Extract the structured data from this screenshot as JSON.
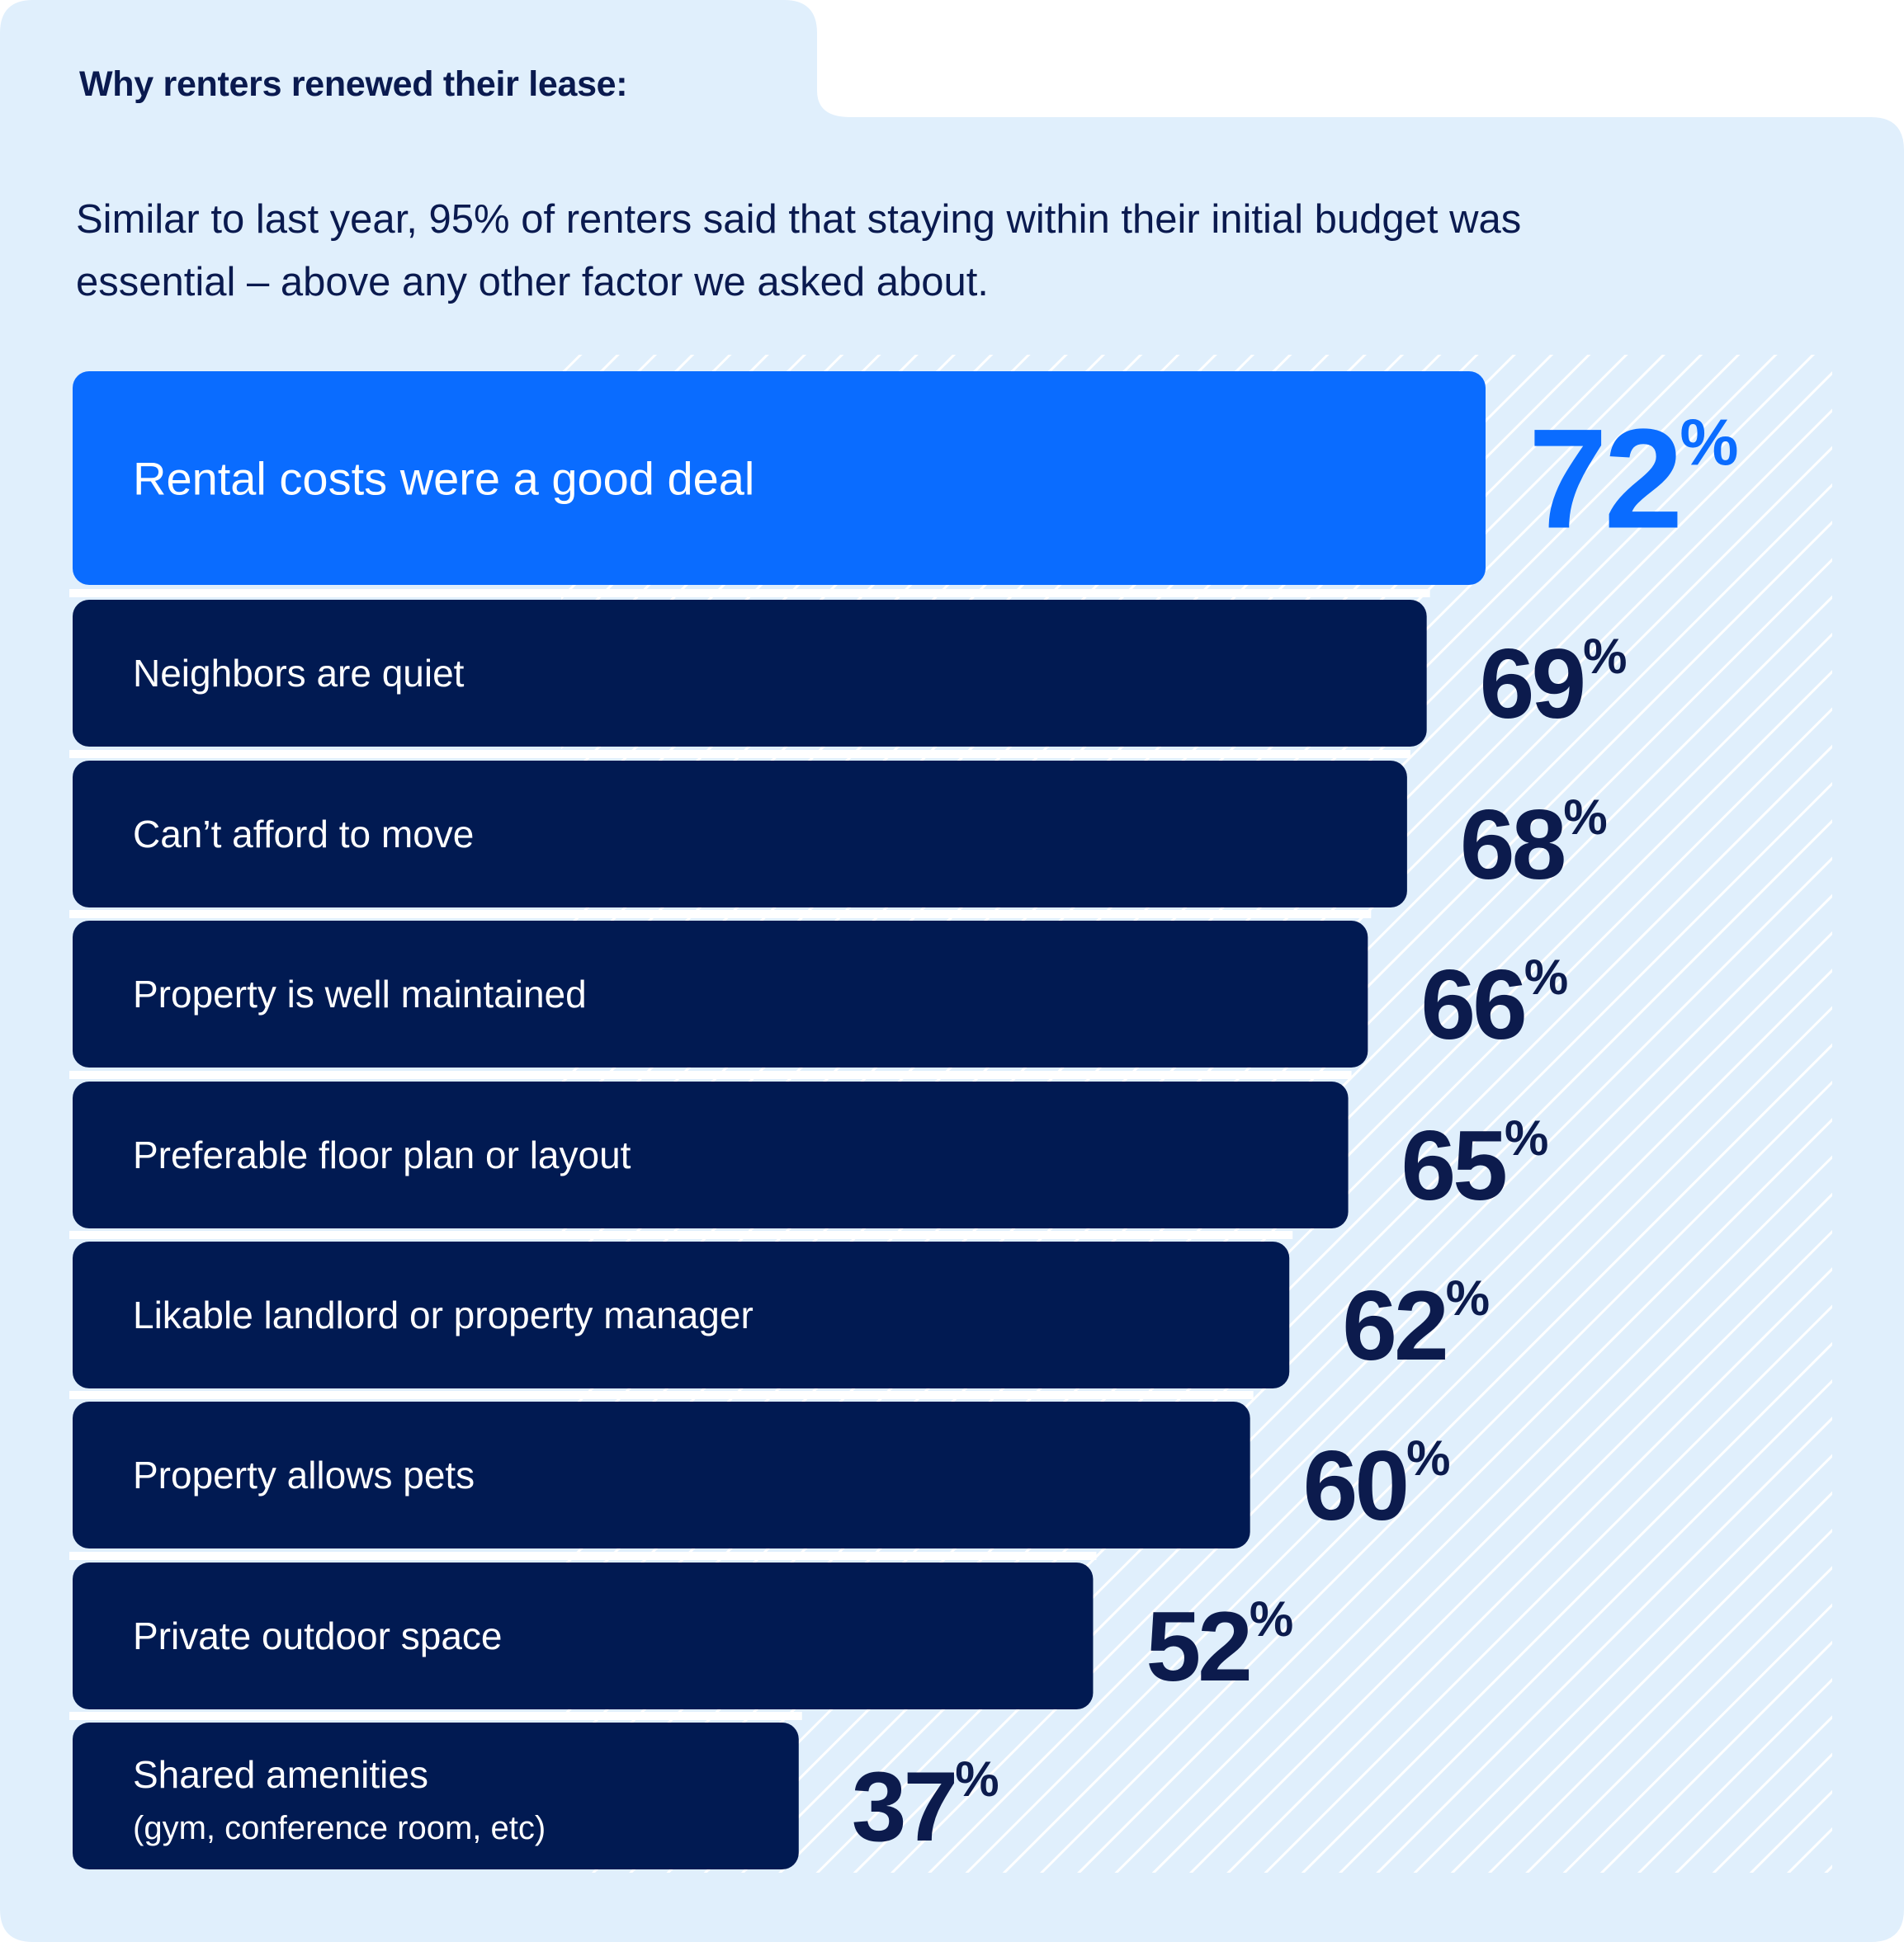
{
  "title": "Why renters renewed their lease:",
  "subtitle": "Similar to last year, 95% of renters said that staying within their initial budget was essential – above any other factor we asked about.",
  "colors": {
    "background": "#e0effc",
    "highlight_bar": "#0a6cff",
    "bar": "#011a52",
    "value_text": "#0c1b4d",
    "highlight_value_text": "#0a6cff",
    "hatch": "#ffffff"
  },
  "chart_data": {
    "type": "bar",
    "orientation": "horizontal",
    "unit": "%",
    "categories": [
      "Rental costs were a good deal",
      "Neighbors are quiet",
      "Can’t afford to move",
      "Property is well maintained",
      "Preferable floor plan or layout",
      "Likable landlord or property manager",
      "Property allows pets",
      "Private outdoor space",
      "Shared amenities (gym, conference room, etc)"
    ],
    "category_lines": [
      [
        "Rental costs were a good deal"
      ],
      [
        "Neighbors are quiet"
      ],
      [
        "Can’t afford to move"
      ],
      [
        "Property is well maintained"
      ],
      [
        "Preferable floor plan or layout"
      ],
      [
        "Likable landlord or property manager"
      ],
      [
        "Property allows pets"
      ],
      [
        "Private outdoor space"
      ],
      [
        "Shared amenities",
        "(gym, conference room, etc)"
      ]
    ],
    "values": [
      72,
      69,
      68,
      66,
      65,
      62,
      60,
      52,
      37
    ],
    "value_labels": [
      "72",
      "69",
      "68",
      "66",
      "65",
      "62",
      "60",
      "52",
      "37"
    ],
    "highlighted_index": 0
  }
}
